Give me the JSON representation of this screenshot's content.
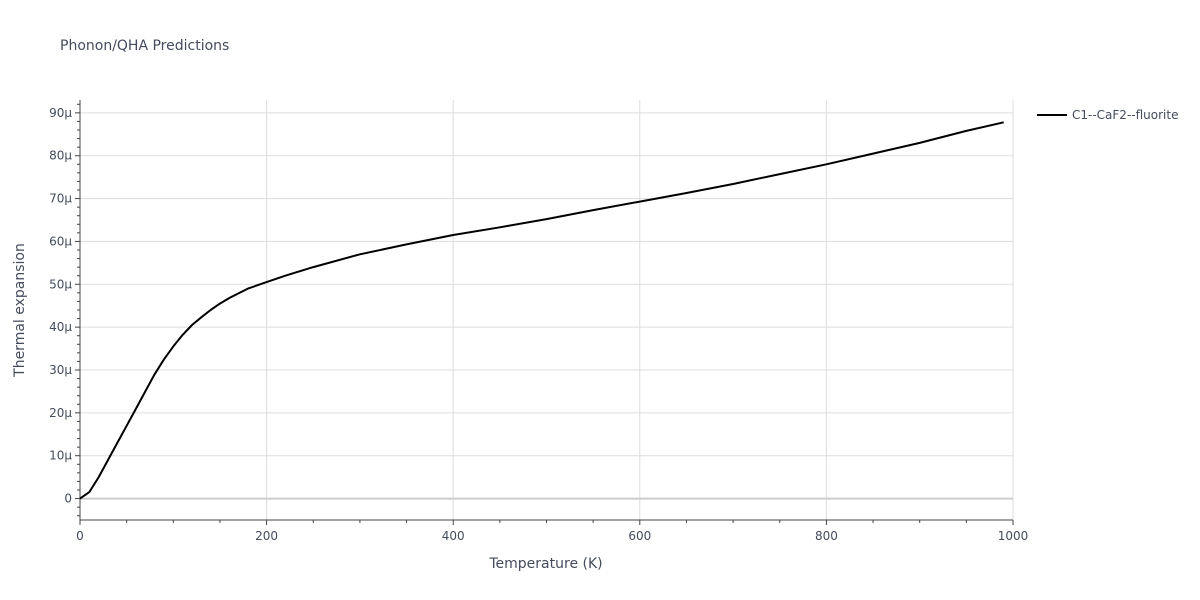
{
  "chart_data": {
    "type": "line",
    "title": "Phonon/QHA Predictions",
    "xlabel": "Temperature (K)",
    "ylabel": "Thermal expansion",
    "xlim": [
      0,
      1000
    ],
    "ylim": [
      -5,
      93
    ],
    "y_unit": "µ (1e-6)",
    "grid": true,
    "legend_position": "top-right outside",
    "x_ticks": [
      0,
      200,
      400,
      600,
      800,
      1000
    ],
    "x_tick_labels": [
      "0",
      "200",
      "400",
      "600",
      "800",
      "1000"
    ],
    "y_ticks": [
      0,
      10,
      20,
      30,
      40,
      50,
      60,
      70,
      80,
      90
    ],
    "y_tick_labels": [
      "0",
      "10µ",
      "20µ",
      "30µ",
      "40µ",
      "50µ",
      "60µ",
      "70µ",
      "80µ",
      "90µ"
    ],
    "series": [
      {
        "name": "C1--CaF2--fluorite",
        "color": "#000000",
        "x": [
          0,
          10,
          20,
          30,
          40,
          50,
          60,
          70,
          80,
          90,
          100,
          110,
          120,
          130,
          140,
          150,
          160,
          180,
          200,
          220,
          250,
          300,
          350,
          400,
          450,
          500,
          550,
          600,
          650,
          700,
          750,
          800,
          850,
          900,
          950,
          990
        ],
        "y": [
          0,
          1.5,
          5.0,
          9.0,
          13.0,
          17.0,
          21.0,
          25.0,
          29.0,
          32.5,
          35.5,
          38.2,
          40.5,
          42.3,
          44.0,
          45.5,
          46.8,
          49.0,
          50.5,
          52.0,
          54.0,
          57.0,
          59.3,
          61.5,
          63.3,
          65.2,
          67.3,
          69.3,
          71.3,
          73.4,
          75.7,
          78.0,
          80.5,
          83.0,
          85.8,
          87.8
        ]
      }
    ]
  }
}
